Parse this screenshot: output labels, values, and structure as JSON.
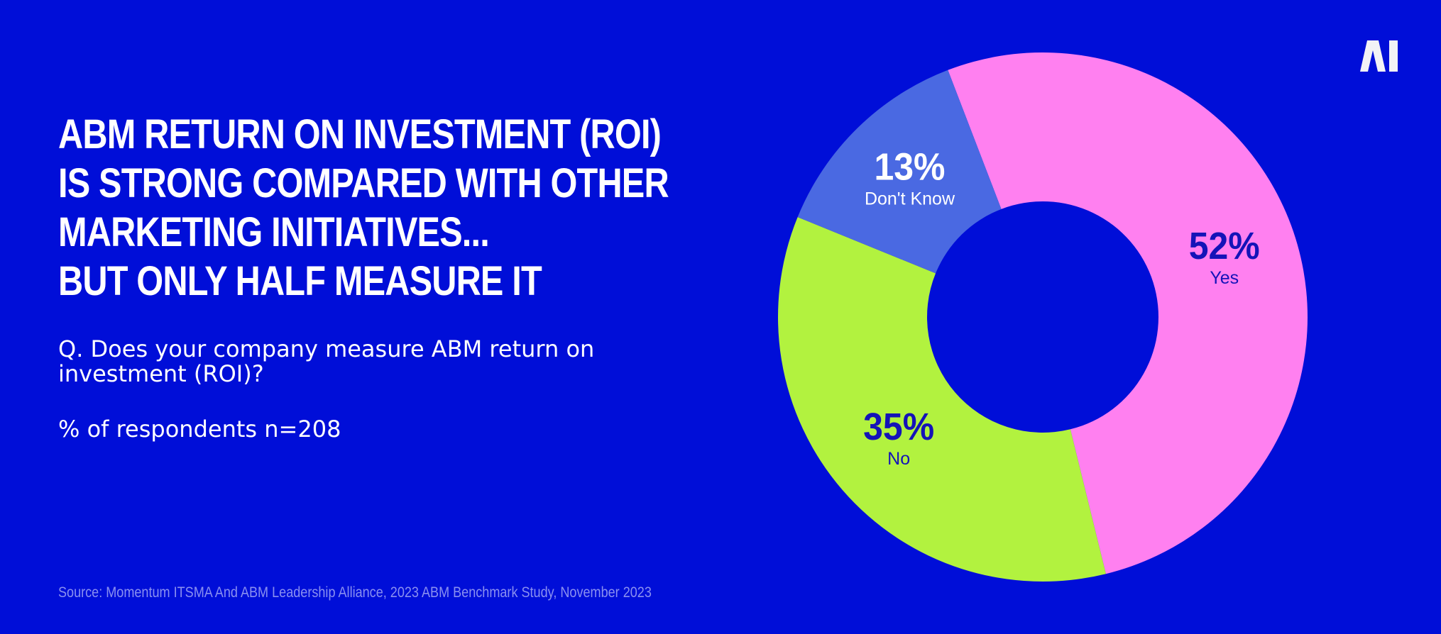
{
  "header": {
    "title_lines": [
      "ABM RETURN ON INVESTMENT (ROI)",
      "IS STRONG COMPARED WITH OTHER",
      "MARKETING INITIATIVES...",
      "BUT ONLY HALF MEASURE IT"
    ],
    "question": "Q. Does your company measure ABM return on investment (ROI)?",
    "respondents": "% of respondents n=208"
  },
  "logo": {
    "text": "AI",
    "icon": "ai-logo-icon"
  },
  "footer": {
    "source": "Source: Momentum ITSMA And ABM Leadership Alliance, 2023 ABM Benchmark Study, November 2023"
  },
  "colors": {
    "background": "#000ED8",
    "yes": "#FF80F0",
    "no": "#B2F23F",
    "dont_know": "#4A69E2",
    "dark_label": "#1413B8",
    "light_label": "#FFFFFF"
  },
  "chart_data": {
    "type": "pie",
    "variant": "donut",
    "title": "ABM RETURN ON INVESTMENT (ROI) IS STRONG COMPARED WITH OTHER MARKETING INITIATIVES... BUT ONLY HALF MEASURE IT",
    "slices": [
      {
        "label": "Yes",
        "value": 52,
        "value_label": "52%",
        "color": "#FF80F0",
        "text_color": "#1413B8"
      },
      {
        "label": "No",
        "value": 35,
        "value_label": "35%",
        "color": "#B2F23F",
        "text_color": "#1413B8"
      },
      {
        "label": "Don't Know",
        "value": 13,
        "value_label": "13%",
        "color": "#4A69E2",
        "text_color": "#FFFFFF"
      }
    ]
  }
}
